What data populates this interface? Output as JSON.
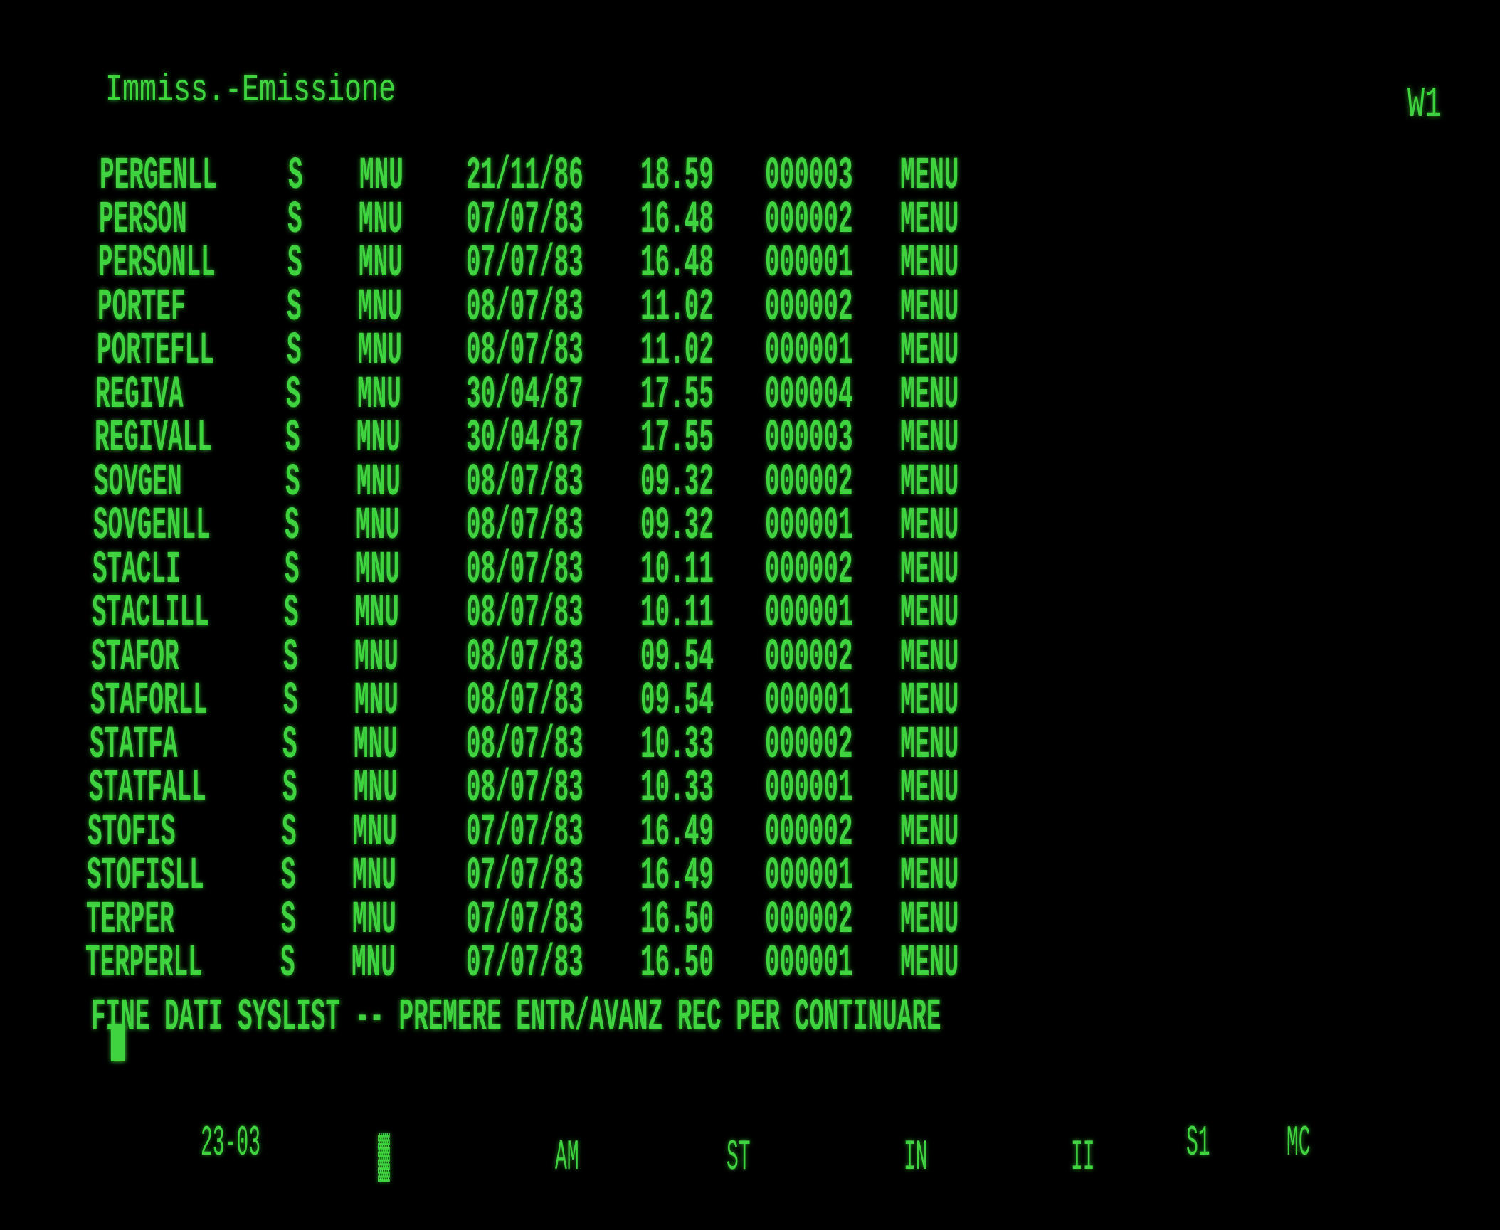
{
  "header": {
    "title": "Immiss.-Emissione",
    "window_id": "W1"
  },
  "table": {
    "rows": [
      [
        "PERGENLL",
        "S",
        "MNU",
        "21/11/86",
        "18.59",
        "000003",
        "MENU"
      ],
      [
        "PERSON",
        "S",
        "MNU",
        "07/07/83",
        "16.48",
        "000002",
        "MENU"
      ],
      [
        "PERSONLL",
        "S",
        "MNU",
        "07/07/83",
        "16.48",
        "000001",
        "MENU"
      ],
      [
        "PORTEF",
        "S",
        "MNU",
        "08/07/83",
        "11.02",
        "000002",
        "MENU"
      ],
      [
        "PORTEFLL",
        "S",
        "MNU",
        "08/07/83",
        "11.02",
        "000001",
        "MENU"
      ],
      [
        "REGIVA",
        "S",
        "MNU",
        "30/04/87",
        "17.55",
        "000004",
        "MENU"
      ],
      [
        "REGIVALL",
        "S",
        "MNU",
        "30/04/87",
        "17.55",
        "000003",
        "MENU"
      ],
      [
        "SOVGEN",
        "S",
        "MNU",
        "08/07/83",
        "09.32",
        "000002",
        "MENU"
      ],
      [
        "SOVGENLL",
        "S",
        "MNU",
        "08/07/83",
        "09.32",
        "000001",
        "MENU"
      ],
      [
        "STACLI",
        "S",
        "MNU",
        "08/07/83",
        "10.11",
        "000002",
        "MENU"
      ],
      [
        "STACLILL",
        "S",
        "MNU",
        "08/07/83",
        "10.11",
        "000001",
        "MENU"
      ],
      [
        "STAFOR",
        "S",
        "MNU",
        "08/07/83",
        "09.54",
        "000002",
        "MENU"
      ],
      [
        "STAFORLL",
        "S",
        "MNU",
        "08/07/83",
        "09.54",
        "000001",
        "MENU"
      ],
      [
        "STATFA",
        "S",
        "MNU",
        "08/07/83",
        "10.33",
        "000002",
        "MENU"
      ],
      [
        "STATFALL",
        "S",
        "MNU",
        "08/07/83",
        "10.33",
        "000001",
        "MENU"
      ],
      [
        "STOFIS",
        "S",
        "MNU",
        "07/07/83",
        "16.49",
        "000002",
        "MENU"
      ],
      [
        "STOFISLL",
        "S",
        "MNU",
        "07/07/83",
        "16.49",
        "000001",
        "MENU"
      ],
      [
        "TERPER",
        "S",
        "MNU",
        "07/07/83",
        "16.50",
        "000002",
        "MENU"
      ],
      [
        "TERPERLL",
        "S",
        "MNU",
        "07/07/83",
        "16.50",
        "000001",
        "MENU"
      ]
    ]
  },
  "footer": {
    "message": "FINE DATI SYSLIST -- PREMERE ENTR/AVANZ REC PER CONTINUARE"
  },
  "status_bar": [
    "23-03",
    "▓",
    "AM",
    "ST",
    "IN",
    "II",
    "S1",
    "MC"
  ],
  "colors": {
    "phosphor": "#3fd43f",
    "background": "#000000"
  }
}
